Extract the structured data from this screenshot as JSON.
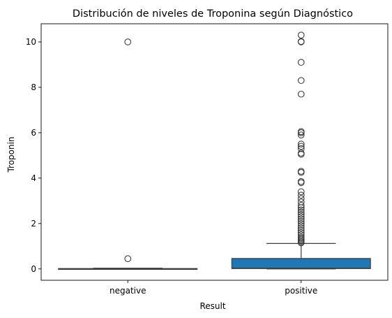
{
  "chart_data": {
    "type": "box",
    "title": "Distribución de niveles de Troponina según Diagnóstico",
    "xlabel": "Result",
    "ylabel": "Troponin",
    "categories": [
      "negative",
      "positive"
    ],
    "ylim": [
      -0.5,
      10.8
    ],
    "yticks": [
      "0",
      "2",
      "4",
      "6",
      "8",
      "10"
    ],
    "grid": false,
    "colors": {
      "negative": "#1f77b4",
      "positive": "#1f77b4",
      "lines": "#3d3d3d"
    },
    "boxes": [
      {
        "category": "negative",
        "q1": 0.002,
        "median": 0.006,
        "q3": 0.016,
        "whisker_low": 0.001,
        "whisker_high": 0.03,
        "outliers": [
          0.45,
          10.0
        ]
      },
      {
        "category": "positive",
        "q1": 0.015,
        "median": 0.03,
        "q3": 0.46,
        "whisker_low": 0.001,
        "whisker_high": 1.12,
        "outliers": [
          1.15,
          1.2,
          1.25,
          1.3,
          1.35,
          1.4,
          1.5,
          1.6,
          1.7,
          1.8,
          1.9,
          2.0,
          2.1,
          2.2,
          2.3,
          2.4,
          2.5,
          2.6,
          2.7,
          2.8,
          2.95,
          3.1,
          3.25,
          3.4,
          3.8,
          3.85,
          4.25,
          4.3,
          5.05,
          5.1,
          5.3,
          5.4,
          5.5,
          5.9,
          6.0,
          6.05,
          7.7,
          8.3,
          9.1,
          10.0,
          10.02,
          10.3
        ]
      }
    ]
  }
}
